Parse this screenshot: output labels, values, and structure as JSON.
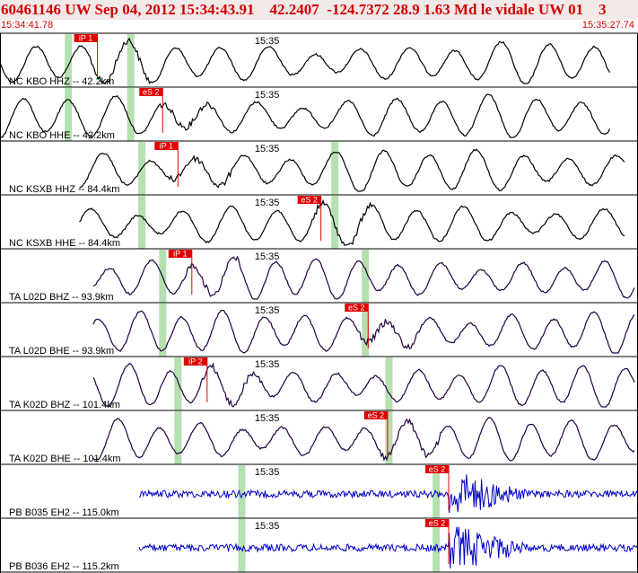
{
  "header": {
    "title": "60461146 UW Sep 04, 2012 15:34:43.91    42.2407  -124.7372 28.9 1.63 Md le vidale UW 01    3",
    "start_time": "15:34:41.78",
    "end_time": "15:35:27.74"
  },
  "colors": {
    "header_text": "#d00000",
    "header_bg": "#f2e9e9",
    "pick_box": "#e00000",
    "pick_line": "#e00000",
    "phase_window": "#b5e0b0",
    "trace_black": "#000000",
    "trace_purple": "#200040",
    "trace_blue": "#0000c8",
    "separator": "#000000"
  },
  "chart_data": {
    "type": "line",
    "title": "60461146 UW Sep 04, 2012 15:34:43.91    42.2407  -124.7372 28.9 1.63 Md le vidale UW 01    3",
    "x_range": [
      "15:34:41.78",
      "15:35:27.74"
    ],
    "tick_label": "15:35",
    "panels": [
      {
        "label": "NC KBO HHZ -- 42.2km",
        "pick": "iP 1",
        "pick_time": "15:34:48.8",
        "color": "black",
        "windows": [
          "15:34:46.7",
          "15:34:51.2"
        ],
        "trace_span": [
          "15:34:41.78",
          "15:35:25.8"
        ]
      },
      {
        "label": "NC KBO HHE -- 42.2km",
        "pick": "eS 2",
        "pick_time": "15:34:53.5",
        "color": "black",
        "windows": [
          "15:34:46.7",
          "15:34:51.2"
        ],
        "trace_span": [
          "15:34:41.78",
          "15:35:25.8"
        ]
      },
      {
        "label": "NC KSXB HHZ -- 84.4km",
        "pick": "iP 1",
        "pick_time": "15:34:54.6",
        "color": "black",
        "windows": [
          "15:34:52.0",
          "15:35:05.9"
        ],
        "trace_span": [
          "15:34:47.5",
          "15:35:26.8"
        ]
      },
      {
        "label": "NC KSXB HHE -- 84.4km",
        "pick": "eS 2",
        "pick_time": "15:35:04.9",
        "color": "black",
        "windows": [
          "15:34:52.0",
          "15:35:05.9"
        ],
        "trace_span": [
          "15:34:47.5",
          "15:35:26.8"
        ]
      },
      {
        "label": "TA L02D BHZ -- 93.9km",
        "pick": "iP 1",
        "pick_time": "15:34:55.6",
        "color": "purple",
        "windows": [
          "15:34:53.5",
          "15:35:08.1"
        ],
        "trace_span": [
          "15:34:48.5",
          "15:35:27.5"
        ]
      },
      {
        "label": "TA L02D BHE -- 93.9km",
        "pick": "eS 2",
        "pick_time": "15:35:08.3",
        "color": "purple",
        "windows": [
          "15:34:53.5",
          "15:35:08.1"
        ],
        "trace_span": [
          "15:34:48.5",
          "15:35:27.5"
        ]
      },
      {
        "label": "TA K02D BHZ -- 101.4km",
        "pick": "iP 2",
        "pick_time": "15:34:56.7",
        "color": "purple",
        "windows": [
          "15:34:54.6",
          "15:35:09.8"
        ],
        "trace_span": [
          "15:34:48.5",
          "15:35:27.5"
        ]
      },
      {
        "label": "TA K02D BHE -- 101.4km",
        "pick": "eS 2",
        "pick_time": "15:35:09.7",
        "color": "purple",
        "windows": [
          "15:34:54.6",
          "15:35:09.8"
        ],
        "trace_span": [
          "15:34:48.5",
          "15:35:27.5"
        ]
      },
      {
        "label": "PB B035 EH2 -- 115.0km",
        "pick": "eS 2",
        "pick_time": "15:35:14.1",
        "color": "blue",
        "windows": [
          "15:34:59.2",
          "15:35:13.2"
        ],
        "trace_span": [
          "15:34:51.8",
          "15:35:27.74"
        ]
      },
      {
        "label": "PB B036 EH2 -- 115.2km",
        "pick": "eS 2",
        "pick_time": "15:35:14.1",
        "color": "blue",
        "windows": [
          "15:34:59.2",
          "15:35:13.2"
        ],
        "trace_span": [
          "15:34:51.8",
          "15:35:27.74"
        ]
      }
    ]
  }
}
